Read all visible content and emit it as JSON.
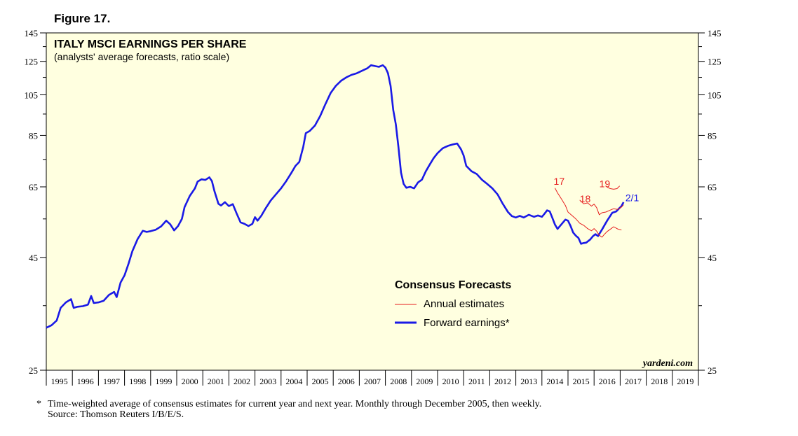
{
  "figure_label": "Figure 17.",
  "footnote": {
    "marker": "*",
    "text": "Time-weighted average of consensus estimates for current year and next year. Monthly through December 2005, then weekly.",
    "source": "Source: Thomson Reuters I/B/E/S."
  },
  "colors": {
    "plot_bg": "#ffffe0",
    "forward": "#1a1ae6",
    "annual": "#e61e1e",
    "axis": "#000000"
  },
  "chart_data": {
    "type": "line",
    "title": "ITALY MSCI EARNINGS PER SHARE",
    "subtitle": "(analysts' average forecasts, ratio scale)",
    "watermark": "yardeni.com",
    "y_scale": "log",
    "ylim": [
      25,
      145
    ],
    "xlim": [
      1995.0,
      2020.0
    ],
    "y_ticks": [
      25,
      45,
      65,
      85,
      105,
      125,
      145
    ],
    "x_tick_labels": [
      "1995",
      "1996",
      "1997",
      "1998",
      "1999",
      "2000",
      "2001",
      "2002",
      "2003",
      "2004",
      "2005",
      "2006",
      "2007",
      "2008",
      "2009",
      "2010",
      "2011",
      "2012",
      "2013",
      "2014",
      "2015",
      "2016",
      "2017",
      "2018",
      "2019"
    ],
    "legend": {
      "title": "Consensus Forecasts",
      "items": [
        {
          "label": "Annual estimates",
          "series": "annual"
        },
        {
          "label": "Forward earnings*",
          "series": "forward"
        }
      ]
    },
    "series": [
      {
        "name": "Forward earnings",
        "key": "forward",
        "points": [
          [
            1995.0,
            31.2
          ],
          [
            1995.2,
            31.6
          ],
          [
            1995.4,
            32.4
          ],
          [
            1995.55,
            34.6
          ],
          [
            1995.75,
            35.6
          ],
          [
            1995.95,
            36.2
          ],
          [
            1996.05,
            34.6
          ],
          [
            1996.2,
            34.8
          ],
          [
            1996.4,
            34.9
          ],
          [
            1996.6,
            35.2
          ],
          [
            1996.72,
            36.8
          ],
          [
            1996.82,
            35.5
          ],
          [
            1997.0,
            35.6
          ],
          [
            1997.2,
            35.9
          ],
          [
            1997.4,
            37.0
          ],
          [
            1997.6,
            37.6
          ],
          [
            1997.7,
            36.6
          ],
          [
            1997.85,
            39.5
          ],
          [
            1998.0,
            41.0
          ],
          [
            1998.15,
            43.5
          ],
          [
            1998.3,
            46.5
          ],
          [
            1998.5,
            49.5
          ],
          [
            1998.7,
            51.7
          ],
          [
            1998.85,
            51.4
          ],
          [
            1999.0,
            51.6
          ],
          [
            1999.2,
            52.0
          ],
          [
            1999.4,
            52.9
          ],
          [
            1999.6,
            54.5
          ],
          [
            1999.75,
            53.5
          ],
          [
            1999.9,
            51.8
          ],
          [
            2000.05,
            53.0
          ],
          [
            2000.2,
            55.0
          ],
          [
            2000.3,
            58.5
          ],
          [
            2000.5,
            62.0
          ],
          [
            2000.7,
            64.5
          ],
          [
            2000.8,
            66.8
          ],
          [
            2000.95,
            67.6
          ],
          [
            2001.1,
            67.4
          ],
          [
            2001.25,
            68.3
          ],
          [
            2001.35,
            67.0
          ],
          [
            2001.45,
            63.5
          ],
          [
            2001.6,
            59.5
          ],
          [
            2001.7,
            59.0
          ],
          [
            2001.85,
            60.0
          ],
          [
            2002.0,
            58.8
          ],
          [
            2002.15,
            59.4
          ],
          [
            2002.3,
            56.5
          ],
          [
            2002.45,
            54.0
          ],
          [
            2002.6,
            53.6
          ],
          [
            2002.75,
            53.0
          ],
          [
            2002.9,
            53.6
          ],
          [
            2003.0,
            55.5
          ],
          [
            2003.1,
            54.5
          ],
          [
            2003.25,
            56.0
          ],
          [
            2003.4,
            58.0
          ],
          [
            2003.6,
            60.5
          ],
          [
            2003.8,
            62.5
          ],
          [
            2004.0,
            64.5
          ],
          [
            2004.2,
            67.0
          ],
          [
            2004.4,
            70.0
          ],
          [
            2004.55,
            72.5
          ],
          [
            2004.7,
            74.0
          ],
          [
            2004.85,
            80.0
          ],
          [
            2004.95,
            86.0
          ],
          [
            2005.1,
            87.0
          ],
          [
            2005.3,
            89.5
          ],
          [
            2005.5,
            94.0
          ],
          [
            2005.7,
            100.0
          ],
          [
            2005.9,
            106.0
          ],
          [
            2006.1,
            110.0
          ],
          [
            2006.3,
            113.0
          ],
          [
            2006.5,
            115.0
          ],
          [
            2006.7,
            116.5
          ],
          [
            2006.9,
            117.5
          ],
          [
            2007.1,
            119.0
          ],
          [
            2007.3,
            120.5
          ],
          [
            2007.45,
            122.5
          ],
          [
            2007.6,
            122.0
          ],
          [
            2007.75,
            121.5
          ],
          [
            2007.9,
            122.5
          ],
          [
            2008.0,
            121.0
          ],
          [
            2008.1,
            117.5
          ],
          [
            2008.2,
            110.0
          ],
          [
            2008.3,
            97.0
          ],
          [
            2008.4,
            90.0
          ],
          [
            2008.5,
            80.0
          ],
          [
            2008.6,
            70.0
          ],
          [
            2008.7,
            66.0
          ],
          [
            2008.8,
            64.7
          ],
          [
            2008.95,
            65.0
          ],
          [
            2009.1,
            64.5
          ],
          [
            2009.25,
            66.5
          ],
          [
            2009.4,
            67.5
          ],
          [
            2009.55,
            70.5
          ],
          [
            2009.7,
            73.0
          ],
          [
            2009.85,
            75.5
          ],
          [
            2010.0,
            77.5
          ],
          [
            2010.2,
            79.5
          ],
          [
            2010.4,
            80.5
          ],
          [
            2010.55,
            81.0
          ],
          [
            2010.75,
            81.5
          ],
          [
            2010.9,
            79.0
          ],
          [
            2011.0,
            76.5
          ],
          [
            2011.1,
            72.5
          ],
          [
            2011.3,
            70.5
          ],
          [
            2011.5,
            69.5
          ],
          [
            2011.7,
            67.5
          ],
          [
            2011.9,
            66.0
          ],
          [
            2012.1,
            64.5
          ],
          [
            2012.3,
            62.5
          ],
          [
            2012.5,
            59.5
          ],
          [
            2012.7,
            57.0
          ],
          [
            2012.85,
            55.8
          ],
          [
            2013.0,
            55.4
          ],
          [
            2013.15,
            55.9
          ],
          [
            2013.3,
            55.4
          ],
          [
            2013.5,
            56.2
          ],
          [
            2013.7,
            55.6
          ],
          [
            2013.85,
            56.0
          ],
          [
            2014.0,
            55.6
          ],
          [
            2014.1,
            56.5
          ],
          [
            2014.2,
            57.5
          ],
          [
            2014.3,
            57.2
          ],
          [
            2014.4,
            55.3
          ],
          [
            2014.5,
            53.4
          ],
          [
            2014.6,
            52.2
          ],
          [
            2014.75,
            53.5
          ],
          [
            2014.9,
            54.8
          ],
          [
            2015.0,
            54.5
          ],
          [
            2015.1,
            53.0
          ],
          [
            2015.2,
            51.2
          ],
          [
            2015.3,
            50.4
          ],
          [
            2015.4,
            49.8
          ],
          [
            2015.5,
            48.3
          ],
          [
            2015.6,
            48.5
          ],
          [
            2015.7,
            48.6
          ],
          [
            2015.85,
            49.4
          ],
          [
            2015.95,
            50.2
          ],
          [
            2016.05,
            50.8
          ],
          [
            2016.15,
            50.3
          ],
          [
            2016.3,
            52.0
          ],
          [
            2016.5,
            54.5
          ],
          [
            2016.7,
            56.8
          ],
          [
            2016.85,
            57.2
          ],
          [
            2016.95,
            58.0
          ],
          [
            2017.05,
            58.8
          ],
          [
            2017.13,
            60.0
          ]
        ]
      },
      {
        "name": "Annual estimates 2017",
        "key": "annual",
        "label": "17",
        "points": [
          [
            2014.5,
            64.6
          ],
          [
            2014.6,
            63.0
          ],
          [
            2014.75,
            61.0
          ],
          [
            2014.9,
            59.0
          ],
          [
            2015.0,
            57.0
          ],
          [
            2015.15,
            56.0
          ],
          [
            2015.3,
            55.0
          ],
          [
            2015.45,
            53.8
          ],
          [
            2015.6,
            53.2
          ],
          [
            2015.75,
            52.3
          ],
          [
            2015.9,
            51.7
          ],
          [
            2016.0,
            52.3
          ],
          [
            2016.1,
            51.6
          ],
          [
            2016.2,
            50.5
          ],
          [
            2016.3,
            50.0
          ],
          [
            2016.4,
            50.8
          ],
          [
            2016.5,
            51.5
          ],
          [
            2016.6,
            52.0
          ],
          [
            2016.75,
            52.8
          ],
          [
            2016.9,
            52.2
          ],
          [
            2017.05,
            51.9
          ]
        ]
      },
      {
        "name": "Annual estimates 2018",
        "key": "annual",
        "label": "18",
        "points": [
          [
            2015.45,
            60.7
          ],
          [
            2015.6,
            59.5
          ],
          [
            2015.75,
            59.8
          ],
          [
            2015.9,
            58.8
          ],
          [
            2016.0,
            59.4
          ],
          [
            2016.1,
            58.3
          ],
          [
            2016.2,
            56.2
          ],
          [
            2016.3,
            56.8
          ],
          [
            2016.45,
            57.0
          ],
          [
            2016.6,
            57.5
          ],
          [
            2016.75,
            58.0
          ],
          [
            2016.9,
            57.8
          ],
          [
            2017.05,
            58.5
          ],
          [
            2017.13,
            59.2
          ]
        ]
      },
      {
        "name": "Annual estimates 2019",
        "key": "annual",
        "label": "19",
        "points": [
          [
            2016.5,
            64.9
          ],
          [
            2016.62,
            64.4
          ],
          [
            2016.75,
            64.2
          ],
          [
            2016.88,
            64.4
          ],
          [
            2016.98,
            65.3
          ]
        ]
      }
    ],
    "annotations": [
      {
        "text": "17",
        "series": "Annual estimates 2017",
        "anchor": [
          2014.45,
          65.7
        ]
      },
      {
        "text": "18",
        "series": "Annual estimates 2018",
        "anchor": [
          2015.45,
          60.0
        ]
      },
      {
        "text": "19",
        "series": "Annual estimates 2019",
        "anchor": [
          2016.2,
          64.9
        ]
      },
      {
        "text": "2/1",
        "series": "Forward earnings",
        "anchor": [
          2017.2,
          60.3
        ]
      }
    ]
  }
}
